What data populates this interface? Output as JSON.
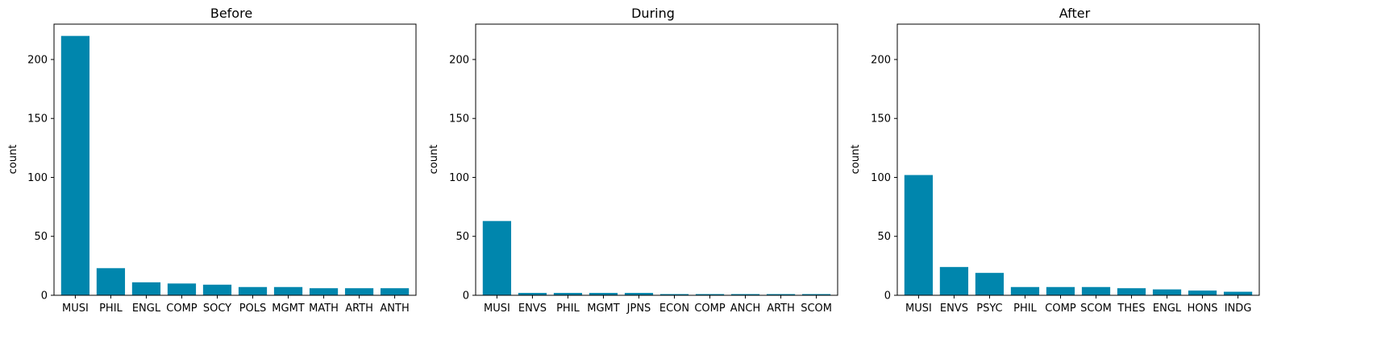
{
  "colors": {
    "bar": "#0086ad",
    "axis": "#000000",
    "background": "#ffffff"
  },
  "chart_data": [
    {
      "type": "bar",
      "title": "Before",
      "xlabel": "",
      "ylabel": "count",
      "ylim": [
        0,
        230
      ],
      "yticks": [
        0,
        50,
        100,
        150,
        200
      ],
      "grid": false,
      "categories": [
        "MUSI",
        "PHIL",
        "ENGL",
        "COMP",
        "SOCY",
        "POLS",
        "MGMT",
        "MATH",
        "ARTH",
        "ANTH"
      ],
      "values": [
        220,
        23,
        11,
        10,
        9,
        7,
        7,
        6,
        6,
        6
      ]
    },
    {
      "type": "bar",
      "title": "During",
      "xlabel": "",
      "ylabel": "count",
      "ylim": [
        0,
        230
      ],
      "yticks": [
        0,
        50,
        100,
        150,
        200
      ],
      "grid": false,
      "categories": [
        "MUSI",
        "ENVS",
        "PHIL",
        "MGMT",
        "JPNS",
        "ECON",
        "COMP",
        "ANCH",
        "ARTH",
        "SCOM"
      ],
      "values": [
        63,
        2,
        2,
        2,
        2,
        1,
        1,
        1,
        1,
        1
      ]
    },
    {
      "type": "bar",
      "title": "After",
      "xlabel": "",
      "ylabel": "count",
      "ylim": [
        0,
        230
      ],
      "yticks": [
        0,
        50,
        100,
        150,
        200
      ],
      "grid": false,
      "categories": [
        "MUSI",
        "ENVS",
        "PSYC",
        "PHIL",
        "COMP",
        "SCOM",
        "THES",
        "ENGL",
        "HONS",
        "INDG"
      ],
      "values": [
        102,
        24,
        19,
        7,
        7,
        7,
        6,
        5,
        4,
        3
      ]
    }
  ]
}
